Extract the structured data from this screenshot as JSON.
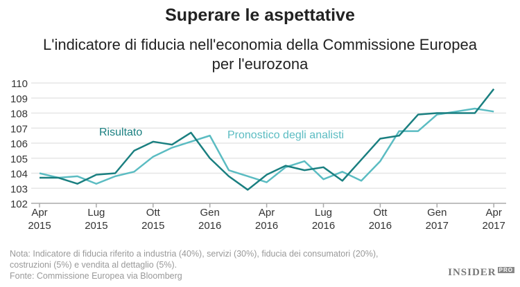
{
  "title": "Superare le aspettative",
  "subtitle_lines": [
    "L'indicatore di fiducia nell'economia della Commissione Europea",
    "per l'eurozona"
  ],
  "chart_data": {
    "type": "line",
    "x": [
      "Apr 2015",
      "Mag 2015",
      "Giu 2015",
      "Lug 2015",
      "Ago 2015",
      "Set 2015",
      "Ott 2015",
      "Nov 2015",
      "Dic 2015",
      "Gen 2016",
      "Feb 2016",
      "Mar 2016",
      "Apr 2016",
      "Mag 2016",
      "Giu 2016",
      "Lug 2016",
      "Ago 2016",
      "Set 2016",
      "Ott 2016",
      "Nov 2016",
      "Dic 2016",
      "Gen 2017",
      "Feb 2017",
      "Mar 2017",
      "Apr 2017"
    ],
    "series": [
      {
        "name": "Risultato",
        "color": "#1a7f80",
        "values": [
          103.7,
          103.7,
          103.3,
          103.9,
          104.0,
          105.5,
          106.1,
          105.9,
          106.7,
          105.0,
          103.8,
          102.9,
          103.9,
          104.5,
          104.2,
          104.4,
          103.5,
          104.9,
          106.3,
          106.5,
          107.9,
          108.0,
          108.0,
          108.0,
          109.6
        ]
      },
      {
        "name": "Pronostico degli analisti",
        "color": "#5bbcc2",
        "values": [
          104.0,
          103.7,
          103.8,
          103.3,
          103.8,
          104.1,
          105.1,
          105.7,
          106.1,
          106.5,
          104.2,
          103.8,
          103.4,
          104.4,
          104.8,
          103.6,
          104.1,
          103.5,
          104.8,
          106.8,
          106.8,
          107.9,
          108.1,
          108.3,
          108.1
        ]
      }
    ],
    "ylim": [
      102,
      110
    ],
    "yticks": [
      102,
      103,
      104,
      105,
      106,
      107,
      108,
      109,
      110
    ],
    "xticks": [
      {
        "m": "Apr",
        "y": "2015",
        "i": 0
      },
      {
        "m": "Lug",
        "y": "2015",
        "i": 3
      },
      {
        "m": "Ott",
        "y": "2015",
        "i": 6
      },
      {
        "m": "Gen",
        "y": "2016",
        "i": 9
      },
      {
        "m": "Apr",
        "y": "2016",
        "i": 12
      },
      {
        "m": "Lug",
        "y": "2016",
        "i": 15
      },
      {
        "m": "Ott",
        "y": "2016",
        "i": 18
      },
      {
        "m": "Gen",
        "y": "2017",
        "i": 21
      },
      {
        "m": "Apr",
        "y": "2017",
        "i": 24
      }
    ],
    "grid": true
  },
  "notes": [
    "Nota: Indicatore di fiducia riferito a industria (40%), servizi (30%), fiducia dei consumatori (20%),",
    "costruzioni (5%) e vendita al dettaglio (5%).",
    "Fonte: Commissione Europea via Bloomberg"
  ],
  "logo": {
    "main": "INSIDER",
    "tag": "PRO"
  }
}
